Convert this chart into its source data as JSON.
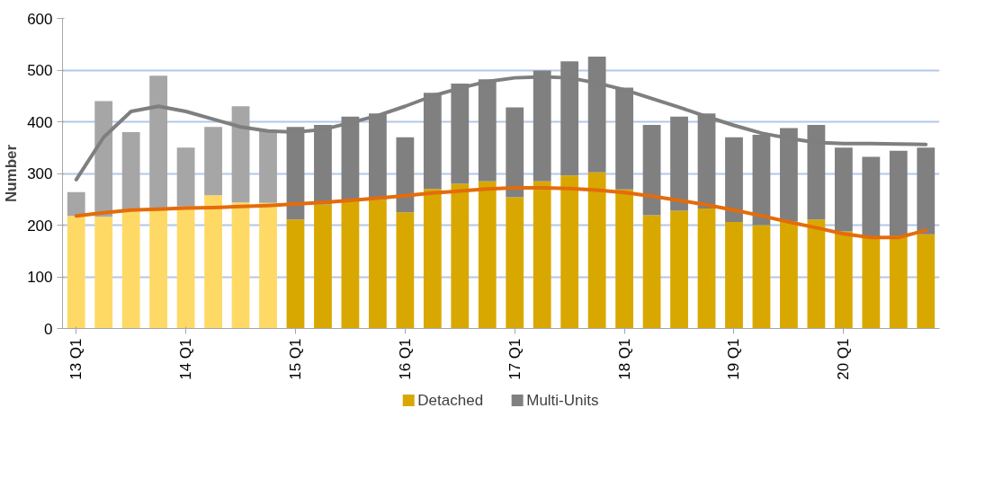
{
  "chart_data": {
    "type": "bar",
    "ylabel": "Number",
    "stacked": true,
    "legend": "bottom",
    "grid": "y",
    "ylim": [
      0,
      600
    ],
    "yticks": [
      0,
      100,
      200,
      300,
      400,
      500,
      600
    ],
    "categories": [
      "13 Q1",
      null,
      null,
      null,
      "14 Q1",
      null,
      null,
      null,
      "15 Q1",
      null,
      null,
      null,
      "16 Q1",
      null,
      null,
      null,
      "17 Q1",
      null,
      null,
      null,
      "18 Q1",
      null,
      null,
      null,
      "19 Q1",
      null,
      null,
      null,
      "20 Q1",
      null,
      null,
      null
    ],
    "series": [
      {
        "name": "Detached",
        "color": "#d9a800",
        "colors": [
          "#ffd966",
          "#ffd966",
          "#ffd966",
          "#ffd966",
          "#ffd966",
          "#ffd966",
          "#ffd966",
          "#ffd966",
          "#d9a800",
          "#d9a800",
          "#d9a800",
          "#d9a800",
          "#d9a800",
          "#d9a800",
          "#d9a800",
          "#d9a800",
          "#d9a800",
          "#d9a800",
          "#d9a800",
          "#d9a800",
          "#d9a800",
          "#d9a800",
          "#d9a800",
          "#d9a800",
          "#d9a800",
          "#d9a800",
          "#d9a800",
          "#d9a800",
          "#d9a800",
          "#d9a800",
          "#d9a800",
          "#d9a800"
        ],
        "values": [
          218,
          216,
          230,
          232,
          236,
          258,
          244,
          243,
          211,
          240,
          247,
          249,
          225,
          270,
          280,
          285,
          254,
          285,
          296,
          302,
          269,
          219,
          228,
          232,
          206,
          200,
          207,
          211,
          188,
          178,
          180,
          182
        ]
      },
      {
        "name": "Multi-Units",
        "color": "#808080",
        "colors": [
          "#a6a6a6",
          "#a6a6a6",
          "#a6a6a6",
          "#a6a6a6",
          "#a6a6a6",
          "#a6a6a6",
          "#a6a6a6",
          "#a6a6a6",
          "#808080",
          "#808080",
          "#808080",
          "#808080",
          "#808080",
          "#808080",
          "#808080",
          "#808080",
          "#808080",
          "#808080",
          "#808080",
          "#808080",
          "#808080",
          "#808080",
          "#808080",
          "#808080",
          "#808080",
          "#808080",
          "#808080",
          "#808080",
          "#808080",
          "#808080",
          "#808080",
          "#808080"
        ],
        "values": [
          46,
          224,
          150,
          257,
          114,
          132,
          186,
          141,
          179,
          154,
          163,
          167,
          145,
          186,
          194,
          197,
          174,
          214,
          221,
          224,
          197,
          175,
          182,
          184,
          164,
          175,
          181,
          183,
          162,
          154,
          164,
          168
        ]
      },
      {
        "type": "line",
        "color": "#7f7f7f",
        "line_style": "solid",
        "marker": "none",
        "values": [
          288,
          370,
          420,
          430,
          420,
          405,
          390,
          382,
          380,
          385,
          398,
          412,
          430,
          450,
          465,
          478,
          485,
          487,
          485,
          475,
          462,
          445,
          428,
          410,
          393,
          378,
          368,
          360,
          358,
          358,
          357,
          356
        ]
      },
      {
        "type": "line",
        "color": "#e46c0a",
        "line_style": "solid",
        "marker": "none",
        "values": [
          218,
          224,
          229,
          231,
          233,
          234,
          236,
          238,
          241,
          244,
          248,
          252,
          257,
          262,
          266,
          270,
          272,
          272,
          271,
          268,
          263,
          256,
          248,
          239,
          229,
          218,
          206,
          195,
          183,
          176,
          176,
          190
        ]
      }
    ]
  }
}
